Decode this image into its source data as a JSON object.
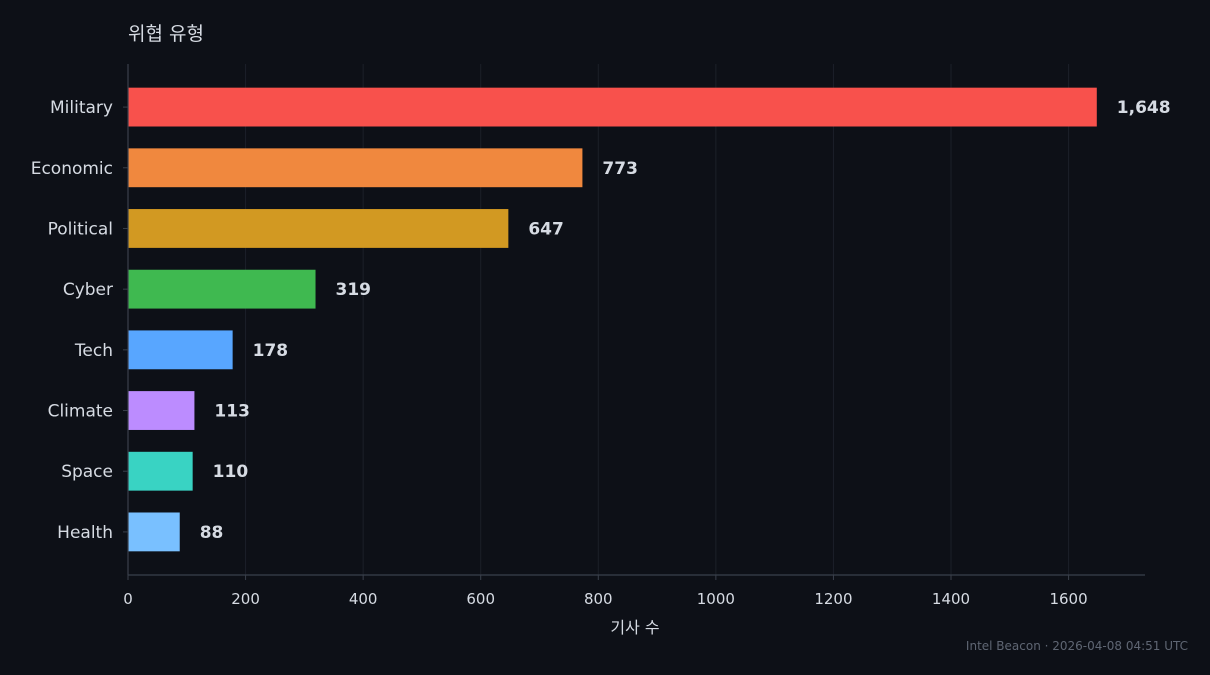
{
  "chart_data": {
    "type": "bar",
    "orientation": "horizontal",
    "title": "위협 유형",
    "xlabel": "기사 수",
    "ylabel": "",
    "categories": [
      "Military",
      "Economic",
      "Political",
      "Cyber",
      "Tech",
      "Climate",
      "Space",
      "Health"
    ],
    "values": [
      1648,
      773,
      647,
      319,
      178,
      113,
      110,
      88
    ],
    "value_labels": [
      "1,648",
      "773",
      "647",
      "319",
      "178",
      "113",
      "110",
      "88"
    ],
    "colors": [
      "#f8514c",
      "#f0883e",
      "#d29922",
      "#3fb950",
      "#58a6ff",
      "#bc8cff",
      "#39d3c3",
      "#79c0ff"
    ],
    "xlim": [
      0,
      1730
    ],
    "xticks": [
      0,
      200,
      400,
      600,
      800,
      1000,
      1200,
      1400,
      1600
    ],
    "grid": "vertical",
    "legend": "none"
  },
  "footer": "Intel Beacon · 2026-04-08 04:51 UTC",
  "theme": {
    "background": "#0d1017",
    "text": "#d6dbe3",
    "grid": "#1b2029",
    "axis": "#3a404b"
  }
}
